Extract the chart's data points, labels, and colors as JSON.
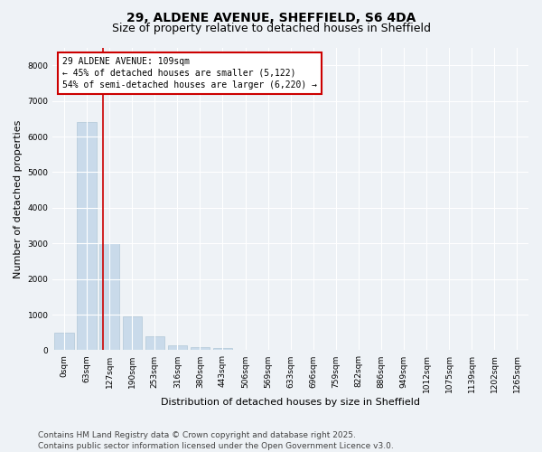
{
  "title_line1": "29, ALDENE AVENUE, SHEFFIELD, S6 4DA",
  "title_line2": "Size of property relative to detached houses in Sheffield",
  "xlabel": "Distribution of detached houses by size in Sheffield",
  "ylabel": "Number of detached properties",
  "categories": [
    "0sqm",
    "63sqm",
    "127sqm",
    "190sqm",
    "253sqm",
    "316sqm",
    "380sqm",
    "443sqm",
    "506sqm",
    "569sqm",
    "633sqm",
    "696sqm",
    "759sqm",
    "822sqm",
    "886sqm",
    "949sqm",
    "1012sqm",
    "1075sqm",
    "1139sqm",
    "1202sqm",
    "1265sqm"
  ],
  "values": [
    500,
    6400,
    3000,
    950,
    400,
    150,
    80,
    50,
    0,
    0,
    0,
    0,
    0,
    0,
    0,
    0,
    0,
    0,
    0,
    0,
    0
  ],
  "bar_color": "#c9daea",
  "bar_edge_color": "#b0c8d8",
  "vline_color": "#cc0000",
  "annotation_text": "29 ALDENE AVENUE: 109sqm\n← 45% of detached houses are smaller (5,122)\n54% of semi-detached houses are larger (6,220) →",
  "annotation_box_color": "#cc0000",
  "ylim": [
    0,
    8500
  ],
  "yticks": [
    0,
    1000,
    2000,
    3000,
    4000,
    5000,
    6000,
    7000,
    8000
  ],
  "footer_line1": "Contains HM Land Registry data © Crown copyright and database right 2025.",
  "footer_line2": "Contains public sector information licensed under the Open Government Licence v3.0.",
  "bg_color": "#eef2f6",
  "plot_bg_color": "#eef2f6",
  "grid_color": "#ffffff",
  "title_fontsize": 10,
  "subtitle_fontsize": 9,
  "ylabel_fontsize": 8,
  "xlabel_fontsize": 8,
  "tick_fontsize": 6.5,
  "footer_fontsize": 6.5,
  "ann_fontsize": 7
}
